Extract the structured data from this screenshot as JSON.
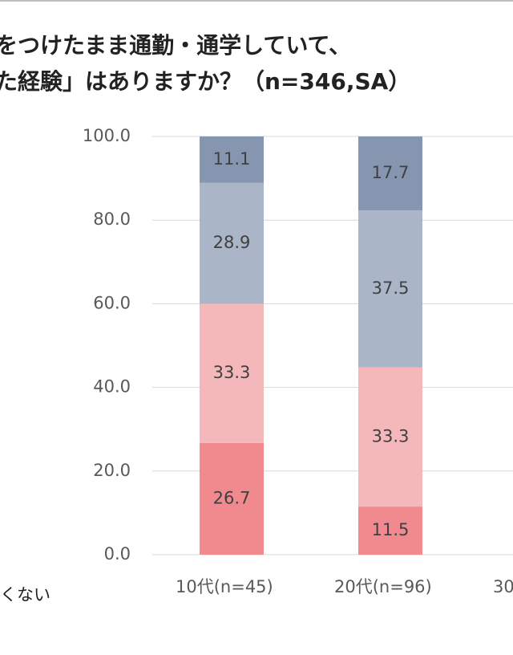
{
  "chart_data": {
    "type": "stacked_bar",
    "title_lines": [
      "をつけたまま通勤・通学していて、",
      "た経験」はありますか？（n=346,SA）"
    ],
    "categories": [
      "10代(n=45)",
      "20代(n=96)",
      "30"
    ],
    "series": [
      {
        "color": "#f08a8e",
        "values": [
          26.7,
          11.5,
          null
        ]
      },
      {
        "color": "#f5b8ba",
        "values": [
          33.3,
          33.3,
          null
        ]
      },
      {
        "color": "#aab5c8",
        "values": [
          28.9,
          37.5,
          null
        ]
      },
      {
        "color": "#8696b0",
        "values": [
          11.1,
          17.7,
          null
        ]
      }
    ],
    "ylim": [
      0,
      100
    ],
    "yticks": [
      {
        "value": 0,
        "label": "0.0"
      },
      {
        "value": 20,
        "label": "20.0"
      },
      {
        "value": 40,
        "label": "40.0"
      },
      {
        "value": 60,
        "label": "60.0"
      },
      {
        "value": 80,
        "label": "80.0"
      },
      {
        "value": 100,
        "label": "100.0"
      }
    ],
    "grid": true,
    "legend_fragment": "くない"
  }
}
